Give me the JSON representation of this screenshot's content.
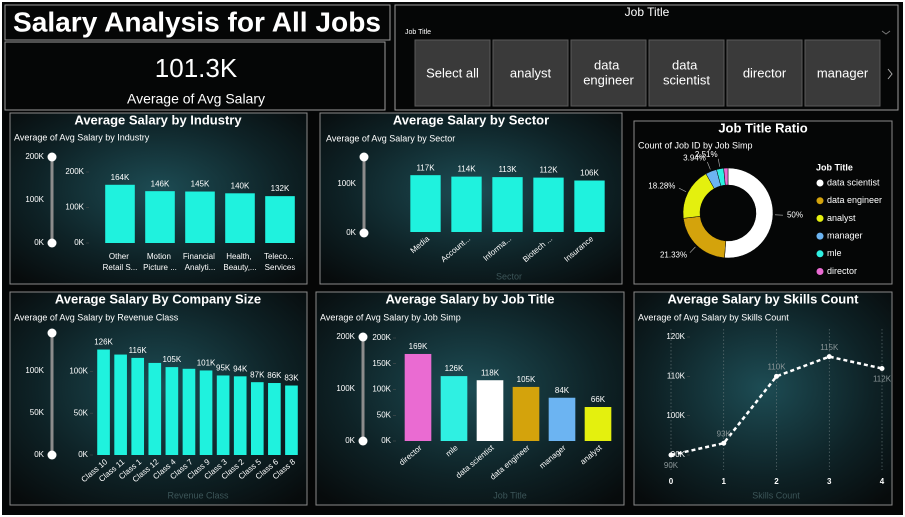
{
  "header": {
    "title": "Salary Analysis for All Jobs"
  },
  "kpi": {
    "value": "101.3K",
    "label": "Average of Avg Salary"
  },
  "slicer": {
    "title": "Job Title",
    "field": "Job Title",
    "options": [
      "Select all",
      "analyst",
      "data engineer",
      "data scientist",
      "director",
      "manager"
    ]
  },
  "chart_data": [
    {
      "type": "bar",
      "title": "Average Salary by Industry",
      "subtitle": "Average of Avg Salary by Industry",
      "slider_labels": [
        "200K",
        "100K",
        "0K"
      ],
      "categories": [
        "Other Retail S...",
        "Motion Picture ...",
        "Financial Analyti...",
        "Health, Beauty,...",
        "Teleco... Services"
      ],
      "values": [
        164000,
        146000,
        145000,
        140000,
        132000
      ],
      "value_labels": [
        "164K",
        "146K",
        "145K",
        "140K",
        "132K"
      ],
      "color": "#1ff2de",
      "ylim": [
        0,
        200000
      ],
      "yticks": [
        {
          "value": 0,
          "label": "0K"
        },
        {
          "value": 100000,
          "label": "100K"
        },
        {
          "value": 200000,
          "label": "200K"
        }
      ]
    },
    {
      "type": "bar",
      "title": "Average Salary by Sector",
      "subtitle": "Average of Avg Salary by Sector",
      "slider_labels": [
        "100K",
        "0K"
      ],
      "x_label": "Sector",
      "categories": [
        "Media",
        "Account...",
        "Informa...",
        "Biotech ...",
        "Insurance"
      ],
      "values": [
        117000,
        114000,
        113000,
        112000,
        106000
      ],
      "value_labels": [
        "117K",
        "114K",
        "113K",
        "112K",
        "106K"
      ],
      "color": "#1ff2de",
      "ylim": [
        0,
        140000
      ]
    },
    {
      "type": "pie",
      "title": "Job Title Ratio",
      "subtitle": "Count of Job ID by Job Simp",
      "legend_title": "Job Title",
      "legend": "right",
      "donut": true,
      "categories": [
        "data scientist",
        "data engineer",
        "analyst",
        "manager",
        "mle",
        "director"
      ],
      "values": [
        50,
        21.33,
        18.28,
        3.94,
        2.51,
        1.5
      ],
      "value_labels": [
        "50%",
        "21.33%",
        "18.28%",
        "3.94%",
        "2.51%",
        null
      ],
      "colors": [
        "#ffffff",
        "#d4a30c",
        "#e4f00e",
        "#6cb4f2",
        "#2ff0e2",
        "#ea6bd2"
      ]
    },
    {
      "type": "bar",
      "title": "Average Salary By Company Size",
      "subtitle": "Average of Avg Salary by Revenue Class",
      "slider_labels": [
        "100K",
        "50K",
        "0K"
      ],
      "x_label": "Revenue Class",
      "categories": [
        "Class 10",
        "Class 11",
        "Class 1",
        "Class 12",
        "Class 4",
        "Class 7",
        "Class 9",
        "Class 3",
        "Class 2",
        "Class 5",
        "Class 6",
        "Class 8"
      ],
      "values": [
        126000,
        120000,
        116000,
        110000,
        105000,
        103000,
        101000,
        95000,
        94000,
        87000,
        86000,
        83000
      ],
      "value_labels": [
        "126K",
        null,
        "116K",
        null,
        "105K",
        null,
        "101K",
        "95K",
        "94K",
        "87K",
        "86K",
        "83K"
      ],
      "color": "#1ff2de",
      "ylim": [
        0,
        135000
      ],
      "yticks": [
        {
          "value": 0,
          "label": "0K"
        },
        {
          "value": 50000,
          "label": "50K"
        },
        {
          "value": 100000,
          "label": "100K"
        }
      ]
    },
    {
      "type": "bar",
      "title": "Average Salary by Job Title",
      "subtitle": "Average of Avg Salary by Job Simp",
      "slider_labels": [
        "200K",
        "100K",
        "0K"
      ],
      "x_label": "Job Title",
      "categories": [
        "director",
        "mle",
        "data scientist",
        "data engineer",
        "manager",
        "analyst"
      ],
      "values": [
        169000,
        126000,
        118000,
        105000,
        84000,
        66000
      ],
      "value_labels": [
        "169K",
        "126K",
        "118K",
        "105K",
        "84K",
        "66K"
      ],
      "colors": [
        "#ea6bd2",
        "#2ff0e2",
        "#ffffff",
        "#d4a30c",
        "#6cb4f2",
        "#e4f00e"
      ],
      "ylim": [
        0,
        200000
      ],
      "yticks": [
        {
          "value": 0,
          "label": "0K"
        },
        {
          "value": 50000,
          "label": "50K"
        },
        {
          "value": 100000,
          "label": "100K"
        },
        {
          "value": 150000,
          "label": "150K"
        },
        {
          "value": 200000,
          "label": "200K"
        }
      ]
    },
    {
      "type": "line",
      "title": "Average Salary by Skills Count",
      "subtitle": "Average of Avg Salary by Skills Count",
      "x_label": "Skills Count",
      "x": [
        0,
        1,
        2,
        3,
        4
      ],
      "values": [
        90000,
        93000,
        110000,
        115000,
        112000
      ],
      "value_labels": [
        "90K",
        "93K",
        "110K",
        "115K",
        "112K"
      ],
      "color": "#ffffff",
      "xlim": [
        0,
        4
      ],
      "xticks": [
        0,
        1,
        2,
        3,
        4
      ],
      "ylim": [
        90000,
        120000
      ],
      "yticks": [
        {
          "value": 90000,
          "label": "90K"
        },
        {
          "value": 100000,
          "label": "100K"
        },
        {
          "value": 110000,
          "label": "110K"
        },
        {
          "value": 120000,
          "label": "120K"
        }
      ],
      "grid": "x"
    }
  ]
}
